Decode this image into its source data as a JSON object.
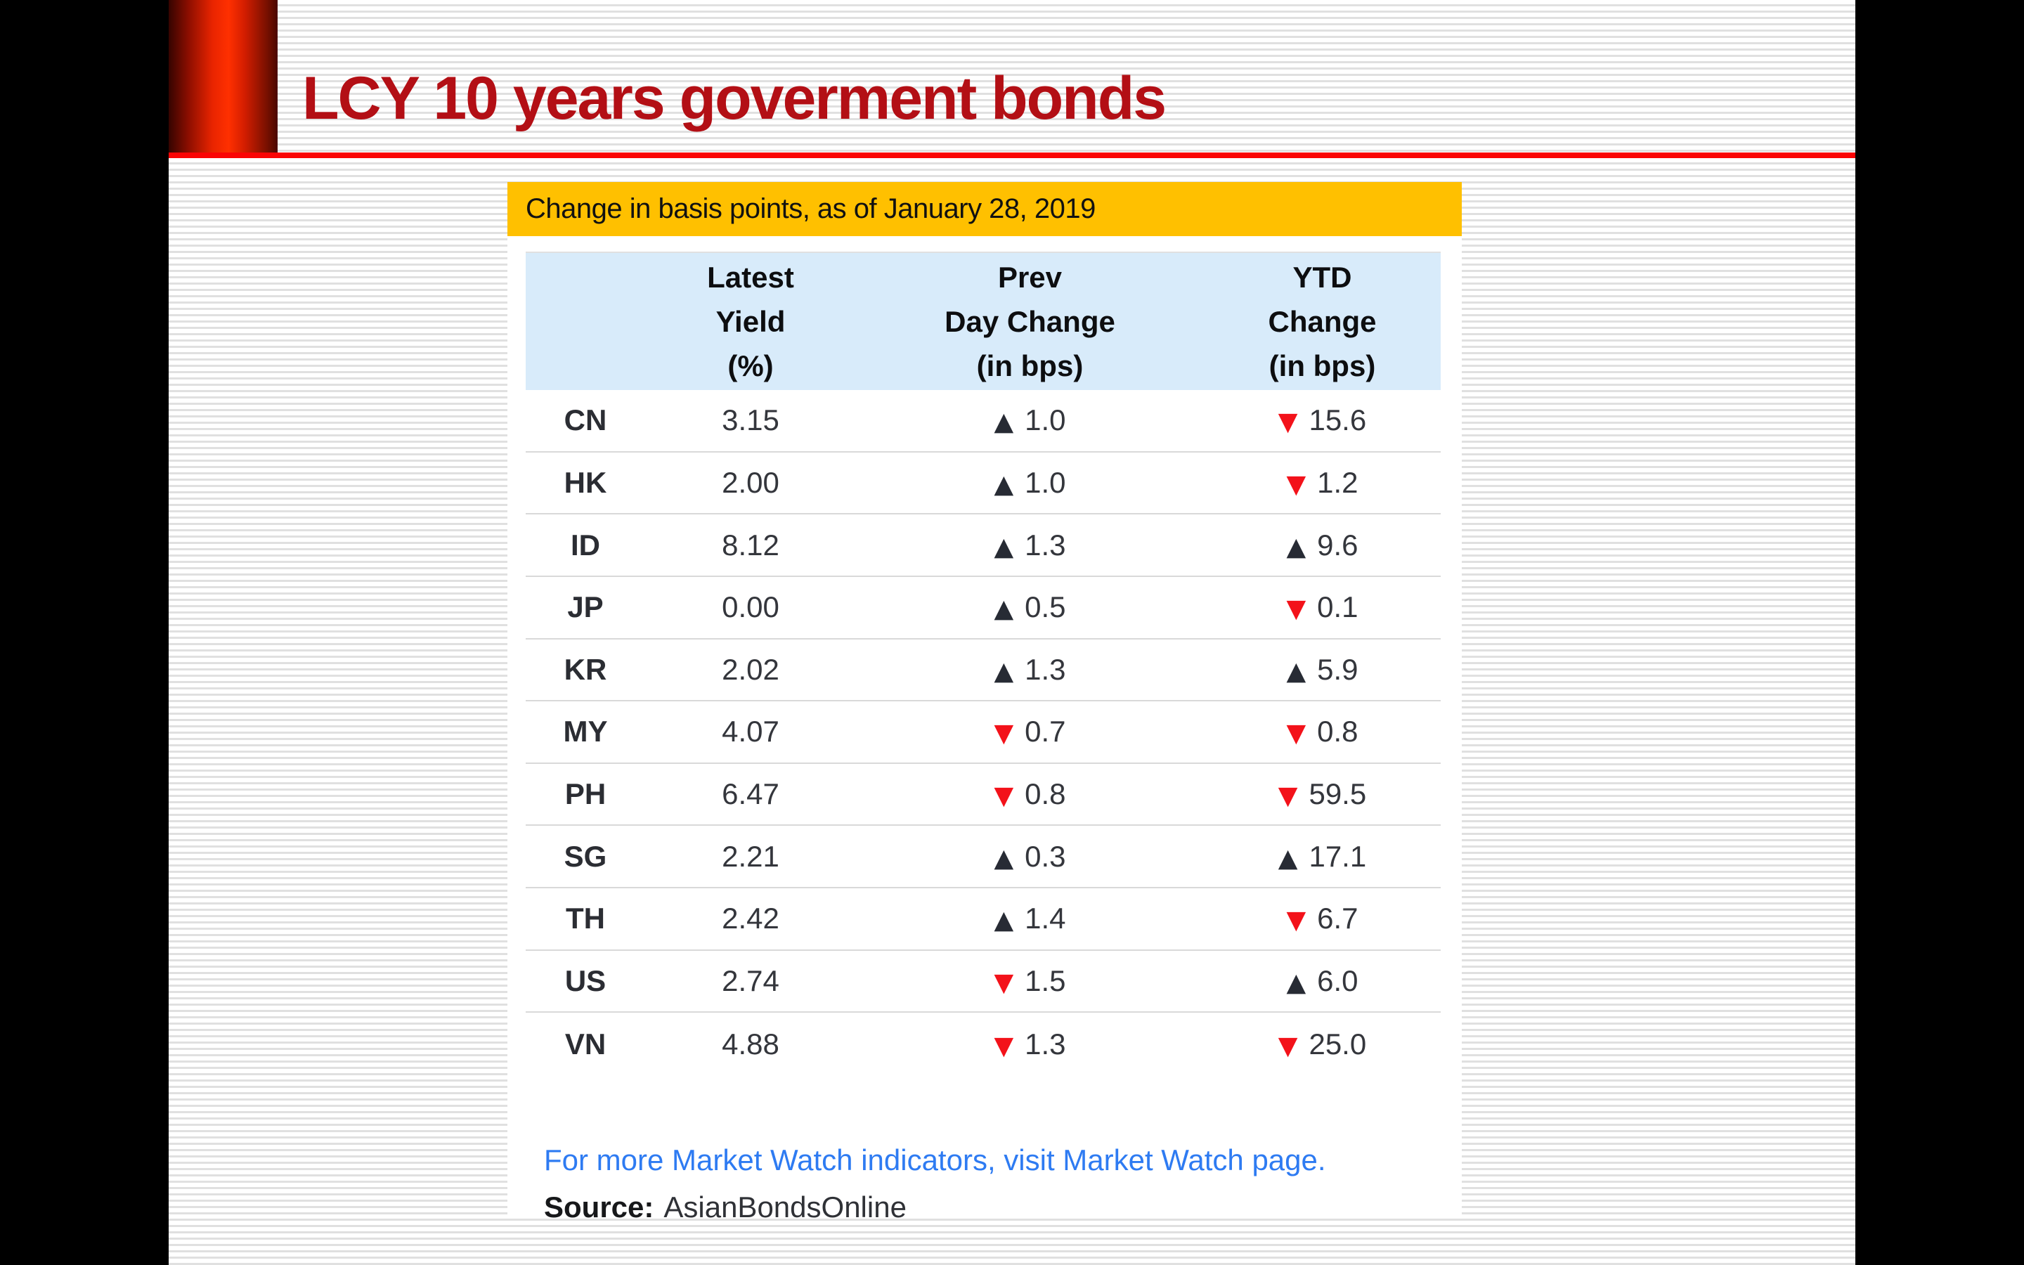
{
  "slide": {
    "title": "LCY 10 years goverment bonds",
    "banner": "Change in basis points, as of January 28, 2019",
    "table": {
      "headers": [
        {
          "lines": [
            "Latest",
            "Yield",
            "(%)"
          ]
        },
        {
          "lines": [
            "Prev",
            "Day Change",
            "(in bps)"
          ]
        },
        {
          "lines": [
            "YTD",
            "Change",
            "(in bps)"
          ]
        }
      ],
      "rows": [
        {
          "code": "CN",
          "yield": "3.15",
          "prev": {
            "dir": "up",
            "value": "1.0"
          },
          "ytd": {
            "dir": "down",
            "value": "15.6"
          }
        },
        {
          "code": "HK",
          "yield": "2.00",
          "prev": {
            "dir": "up",
            "value": "1.0"
          },
          "ytd": {
            "dir": "down",
            "value": "1.2"
          }
        },
        {
          "code": "ID",
          "yield": "8.12",
          "prev": {
            "dir": "up",
            "value": "1.3"
          },
          "ytd": {
            "dir": "up",
            "value": "9.6"
          }
        },
        {
          "code": "JP",
          "yield": "0.00",
          "prev": {
            "dir": "up",
            "value": "0.5"
          },
          "ytd": {
            "dir": "down",
            "value": "0.1"
          }
        },
        {
          "code": "KR",
          "yield": "2.02",
          "prev": {
            "dir": "up",
            "value": "1.3"
          },
          "ytd": {
            "dir": "up",
            "value": "5.9"
          }
        },
        {
          "code": "MY",
          "yield": "4.07",
          "prev": {
            "dir": "down",
            "value": "0.7"
          },
          "ytd": {
            "dir": "down",
            "value": "0.8"
          }
        },
        {
          "code": "PH",
          "yield": "6.47",
          "prev": {
            "dir": "down",
            "value": "0.8"
          },
          "ytd": {
            "dir": "down",
            "value": "59.5"
          }
        },
        {
          "code": "SG",
          "yield": "2.21",
          "prev": {
            "dir": "up",
            "value": "0.3"
          },
          "ytd": {
            "dir": "up",
            "value": "17.1"
          }
        },
        {
          "code": "TH",
          "yield": "2.42",
          "prev": {
            "dir": "up",
            "value": "1.4"
          },
          "ytd": {
            "dir": "down",
            "value": "6.7"
          }
        },
        {
          "code": "US",
          "yield": "2.74",
          "prev": {
            "dir": "down",
            "value": "1.5"
          },
          "ytd": {
            "dir": "up",
            "value": "6.0"
          }
        },
        {
          "code": "VN",
          "yield": "4.88",
          "prev": {
            "dir": "down",
            "value": "1.3"
          },
          "ytd": {
            "dir": "down",
            "value": "25.0"
          }
        }
      ]
    },
    "footer": {
      "link": "For more Market Watch indicators, visit Market Watch page.",
      "source_label": "Source:",
      "source_value": "AsianBondsOnline"
    },
    "colors": {
      "title_red": "#b30f15",
      "rule_red": "#fa0505",
      "banner_gold": "#ffc000",
      "header_blue": "#d8ebfa",
      "up_triangle": "#272b34",
      "down_triangle": "#f3121a",
      "link_blue": "#2e7bf2"
    }
  }
}
